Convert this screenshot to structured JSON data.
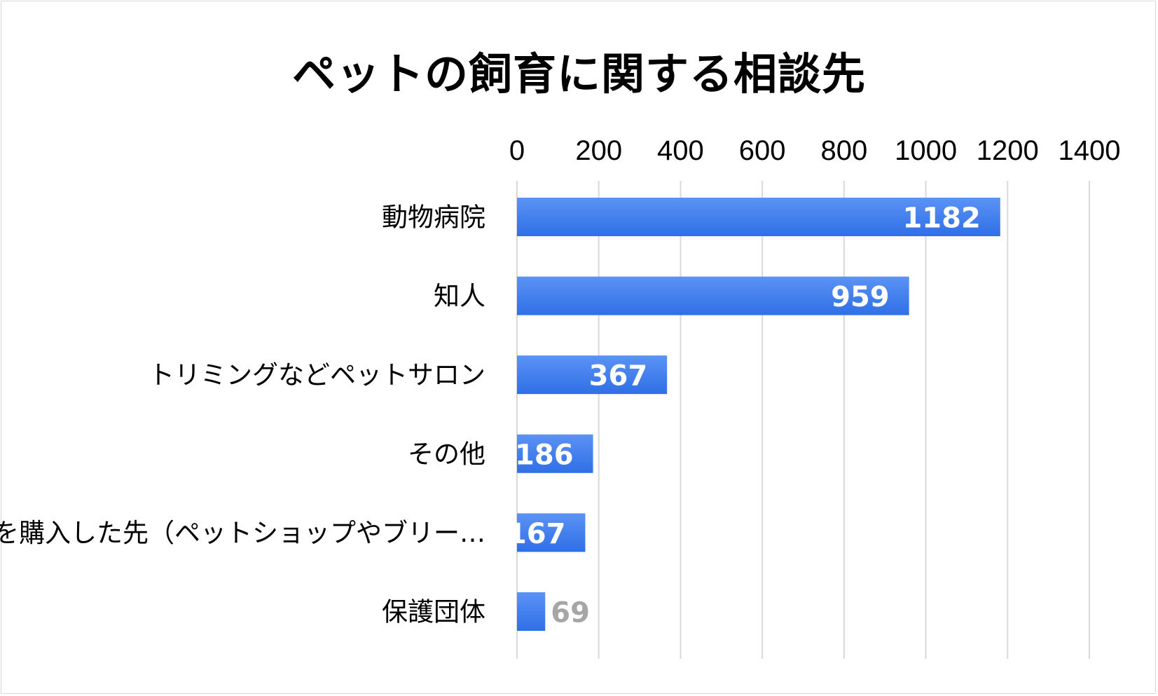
{
  "chart_data": {
    "type": "bar",
    "orientation": "horizontal",
    "title": "ペットの飼育に関する相談先",
    "categories": [
      "動物病院",
      "知人",
      "トリミングなどペットサロン",
      "その他",
      "ペットを購入した先（ペットショップやブリー…",
      "保護団体"
    ],
    "values": [
      1182,
      959,
      367,
      186,
      167,
      69
    ],
    "xlim": [
      0,
      1400
    ],
    "ticks": [
      0,
      200,
      400,
      600,
      800,
      1000,
      1200,
      1400
    ],
    "axis_position": "top",
    "grid": true,
    "legend": "none",
    "colors": {
      "bar_top": "#5b93f5",
      "bar_bottom": "#2f6fe6",
      "grid": "#d9d9d9",
      "label_outside": "#a6a6a6"
    }
  }
}
